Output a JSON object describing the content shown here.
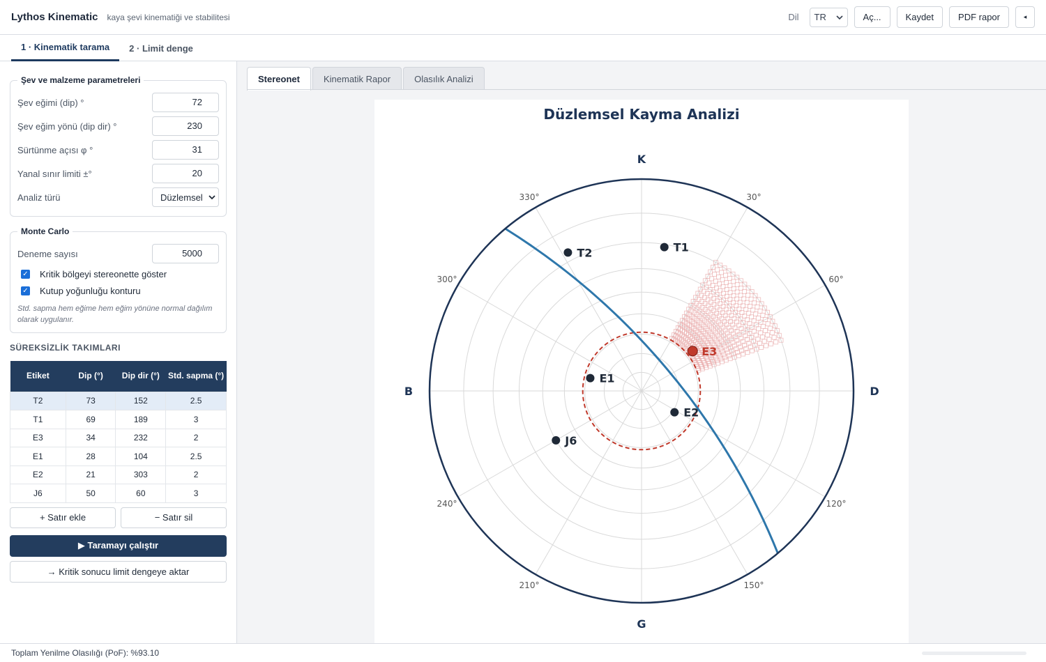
{
  "app": {
    "title": "Lythos Kinematic",
    "subtitle": "kaya şevi kinematiği ve stabilitesi"
  },
  "header": {
    "lang_label": "Dil",
    "lang_value": "TR",
    "open_label": "Aç...",
    "save_label": "Kaydet",
    "pdf_label": "PDF rapor",
    "collapse_glyph": "◂"
  },
  "main_tabs": [
    {
      "label": "1 · Kinematik tarama"
    },
    {
      "label": "2 · Limit denge"
    }
  ],
  "params": {
    "legend": "Şev ve malzeme parametreleri",
    "rows": [
      {
        "label": "Şev eğimi (dip) °",
        "value": "72"
      },
      {
        "label": "Şev eğim yönü (dip dir) °",
        "value": "230"
      },
      {
        "label": "Sürtünme açısı φ °",
        "value": "31"
      },
      {
        "label": "Yanal sınır limiti ±°",
        "value": "20"
      }
    ],
    "analysis_label": "Analiz türü",
    "analysis_value": "Düzlemsel"
  },
  "monte_carlo": {
    "legend": "Monte Carlo",
    "trials_label": "Deneme sayısı",
    "trials_value": "5000",
    "check1": "Kritik bölgeyi stereonette göster",
    "check2": "Kutup yoğunluğu konturu",
    "note": "Std. sapma hem eğime hem eğim yönüne normal dağılım olarak uygulanır."
  },
  "sets": {
    "title": "SÜREKSİZLİK TAKIMLARI",
    "headers": [
      "Etiket",
      "Dip (°)",
      "Dip dir (°)",
      "Std. sapma (°)"
    ],
    "rows": [
      [
        "T2",
        "73",
        "152",
        "2.5"
      ],
      [
        "T1",
        "69",
        "189",
        "3"
      ],
      [
        "E3",
        "34",
        "232",
        "2"
      ],
      [
        "E1",
        "28",
        "104",
        "2.5"
      ],
      [
        "E2",
        "21",
        "303",
        "2"
      ],
      [
        "J6",
        "50",
        "60",
        "3"
      ]
    ],
    "add_row": "+ Satır ekle",
    "del_row": "− Satır sil",
    "run": "▶ Taramayı çalıştır",
    "transfer": "→ Kritik sonucu limit dengeye aktar"
  },
  "sub_tabs": [
    {
      "label": "Stereonet"
    },
    {
      "label": "Kinematik Rapor"
    },
    {
      "label": "Olasılık Analizi"
    }
  ],
  "footer": {
    "status": "Toplam Yenilme Olasılığı (PoF): %93.10"
  },
  "stereonet": {
    "title": "Düzlemsel Kayma Analizi",
    "cardinals": {
      "north": "K",
      "east": "D",
      "south": "G",
      "west": "B"
    },
    "azimuth_labels": [
      "30°",
      "60°",
      "120°",
      "150°",
      "210°",
      "240°",
      "300°",
      "330°"
    ],
    "slope": {
      "dip": 72,
      "dip_dir": 230
    },
    "friction_angle": 31,
    "lateral_limit": 20,
    "critical_pole": "E3",
    "poles": [
      {
        "name": "T2",
        "dip": 73,
        "dip_dir": 152
      },
      {
        "name": "T1",
        "dip": 69,
        "dip_dir": 189
      },
      {
        "name": "E3",
        "dip": 34,
        "dip_dir": 232
      },
      {
        "name": "E1",
        "dip": 28,
        "dip_dir": 104
      },
      {
        "name": "E2",
        "dip": 21,
        "dip_dir": 303
      },
      {
        "name": "J6",
        "dip": 50,
        "dip_dir": 60
      }
    ],
    "colors": {
      "rim": "#1e3456",
      "slope": "#2e77ab",
      "friction": "#c0392b",
      "critical_zone": "#e8a8a8",
      "pole": "#1f2937",
      "grid": "#d9d9d9"
    }
  }
}
